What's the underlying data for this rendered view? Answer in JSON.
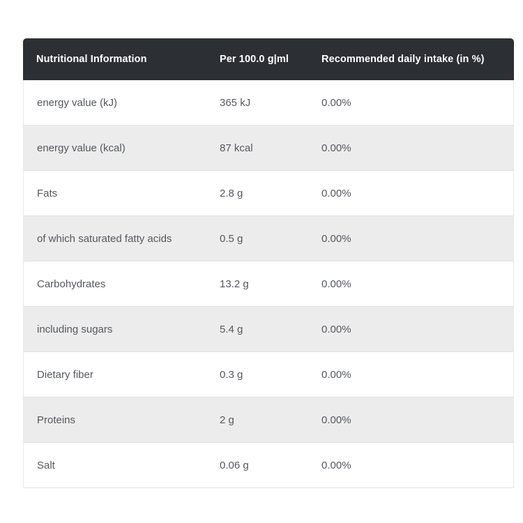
{
  "table": {
    "columns": [
      {
        "label": "Nutritional Information"
      },
      {
        "label": "Per 100.0 g|ml"
      },
      {
        "label": "Recommended daily intake (in %)"
      }
    ],
    "rows": [
      {
        "nutrient": "energy value (kJ)",
        "per_100": "365 kJ",
        "daily_intake": "0.00%"
      },
      {
        "nutrient": "energy value (kcal)",
        "per_100": "87 kcal",
        "daily_intake": "0.00%"
      },
      {
        "nutrient": "Fats",
        "per_100": "2.8 g",
        "daily_intake": "0.00%"
      },
      {
        "nutrient": "of which saturated fatty acids",
        "per_100": "0.5 g",
        "daily_intake": "0.00%"
      },
      {
        "nutrient": "Carbohydrates",
        "per_100": "13.2 g",
        "daily_intake": "0.00%"
      },
      {
        "nutrient": "including sugars",
        "per_100": "5.4 g",
        "daily_intake": "0.00%"
      },
      {
        "nutrient": "Dietary fiber",
        "per_100": "0.3 g",
        "daily_intake": "0.00%"
      },
      {
        "nutrient": "Proteins",
        "per_100": "2 g",
        "daily_intake": "0.00%"
      },
      {
        "nutrient": "Salt",
        "per_100": "0.06 g",
        "daily_intake": "0.00%"
      }
    ]
  },
  "colors": {
    "header_background": "#2c3034",
    "header_text": "#ffffff",
    "row_alt_background": "#ececec",
    "row_background": "#ffffff",
    "body_text": "#54585e",
    "row_border": "#dfe2e6"
  }
}
